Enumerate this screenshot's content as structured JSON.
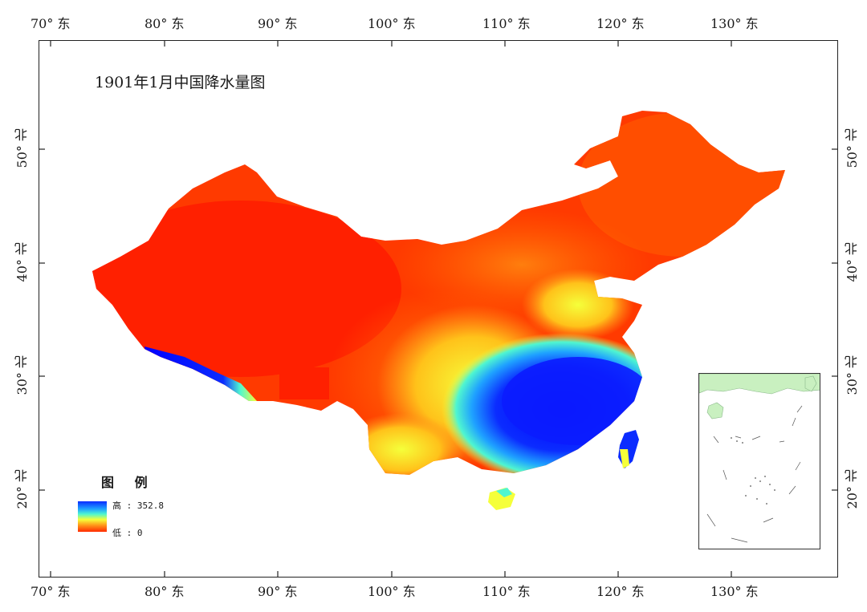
{
  "title": "1901年1月中国降水量图",
  "legend": {
    "heading": "图 例",
    "high_label": "高 : 352.8",
    "low_label": "低 : 0",
    "max_value": 352.8,
    "min_value": 0,
    "colors_high_to_low": [
      "#0b2cff",
      "#1fa2ff",
      "#4ff6d0",
      "#f5ff3a",
      "#ff9a1a",
      "#ff2a00"
    ]
  },
  "axes": {
    "longitude_labels": [
      "70° 东",
      "80° 东",
      "90° 东",
      "100° 东",
      "110° 东",
      "120° 东",
      "130° 东"
    ],
    "latitude_labels": [
      "50° 北",
      "40° 北",
      "30° 北",
      "20° 北"
    ]
  },
  "colors": {
    "precip_low": "#ff2a00",
    "precip_mid": "#f5ff3a",
    "precip_high": "#0b2cff",
    "inset_land": "#c9f0c0"
  }
}
